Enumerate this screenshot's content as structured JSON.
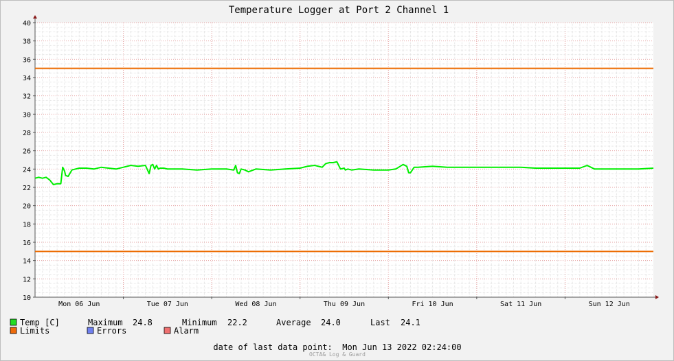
{
  "chart_data": {
    "type": "line",
    "title": "Temperature Logger at Port 2 Channel 1",
    "ylim": [
      10,
      40
    ],
    "y_ticks": [
      10,
      12,
      14,
      16,
      18,
      20,
      22,
      24,
      26,
      28,
      30,
      32,
      34,
      36,
      38,
      40
    ],
    "xlim_hours": [
      0,
      168
    ],
    "x_labels": [
      "Mon 06 Jun",
      "Tue 07 Jun",
      "Wed 08 Jun",
      "Thu 09 Jun",
      "Fri 10 Jun",
      "Sat 11 Jun",
      "Sun 12 Jun"
    ],
    "grid": true,
    "series": [
      {
        "name": "Temp [C]",
        "color": "#00ee00",
        "x_hours": [
          0,
          1,
          2,
          3,
          4,
          5,
          6,
          7,
          7.5,
          8,
          8.3,
          9,
          10,
          11,
          12,
          14,
          16,
          18,
          20,
          22,
          24,
          26,
          28,
          30,
          31,
          31.5,
          32,
          32.5,
          33,
          33.5,
          34,
          35,
          36,
          40,
          44,
          48,
          52,
          54,
          54.5,
          55,
          55.5,
          56,
          57,
          58,
          60,
          64,
          68,
          72,
          74,
          76,
          78,
          79,
          80,
          81,
          82,
          83,
          84,
          84.3,
          85,
          86,
          88,
          92,
          96,
          98,
          100,
          101,
          101.5,
          102,
          103,
          104,
          108,
          112,
          116,
          120,
          124,
          128,
          132,
          136,
          140,
          144,
          148,
          150,
          152,
          156,
          160,
          164,
          168
        ],
        "y_values": [
          23.0,
          23.1,
          23.0,
          23.1,
          22.8,
          22.3,
          22.4,
          22.4,
          24.2,
          23.8,
          23.3,
          23.2,
          23.9,
          24.0,
          24.1,
          24.1,
          24.0,
          24.2,
          24.1,
          24.0,
          24.2,
          24.4,
          24.3,
          24.4,
          23.5,
          24.4,
          24.5,
          24.0,
          24.4,
          24.0,
          24.1,
          24.1,
          24.0,
          24.0,
          23.9,
          24.0,
          24.0,
          23.9,
          24.4,
          23.6,
          23.5,
          24.0,
          23.9,
          23.7,
          24.0,
          23.9,
          24.0,
          24.1,
          24.3,
          24.4,
          24.2,
          24.6,
          24.7,
          24.7,
          24.8,
          24.0,
          24.1,
          23.9,
          24.0,
          23.9,
          24.0,
          23.9,
          23.9,
          24.0,
          24.5,
          24.3,
          23.6,
          23.6,
          24.2,
          24.2,
          24.3,
          24.2,
          24.2,
          24.2,
          24.2,
          24.2,
          24.2,
          24.1,
          24.1,
          24.1,
          24.1,
          24.4,
          24.0,
          24.0,
          24.0,
          24.0,
          24.1
        ]
      },
      {
        "name": "Limits",
        "color": "#ec6b00",
        "y_values": [
          15,
          35
        ]
      }
    ]
  },
  "legend": {
    "temp": {
      "label": "Temp [C]",
      "color": "#22dd22"
    },
    "max_label": "Maximum",
    "max_value": "24.8",
    "min_label": "Minimum",
    "min_value": "22.2",
    "avg_label": "Average",
    "avg_value": "24.0",
    "last_label": "Last",
    "last_value": "24.1",
    "limits": {
      "label": "Limits",
      "color": "#ee6a0a"
    },
    "errors": {
      "label": "Errors",
      "color": "#7080f0"
    },
    "alarm": {
      "label": "Alarm",
      "color": "#f07070"
    }
  },
  "footer": {
    "date_text": "date of last data point:  Mon Jun 13 2022 02:24:00",
    "credit": "OCTA& Log & Guard"
  }
}
